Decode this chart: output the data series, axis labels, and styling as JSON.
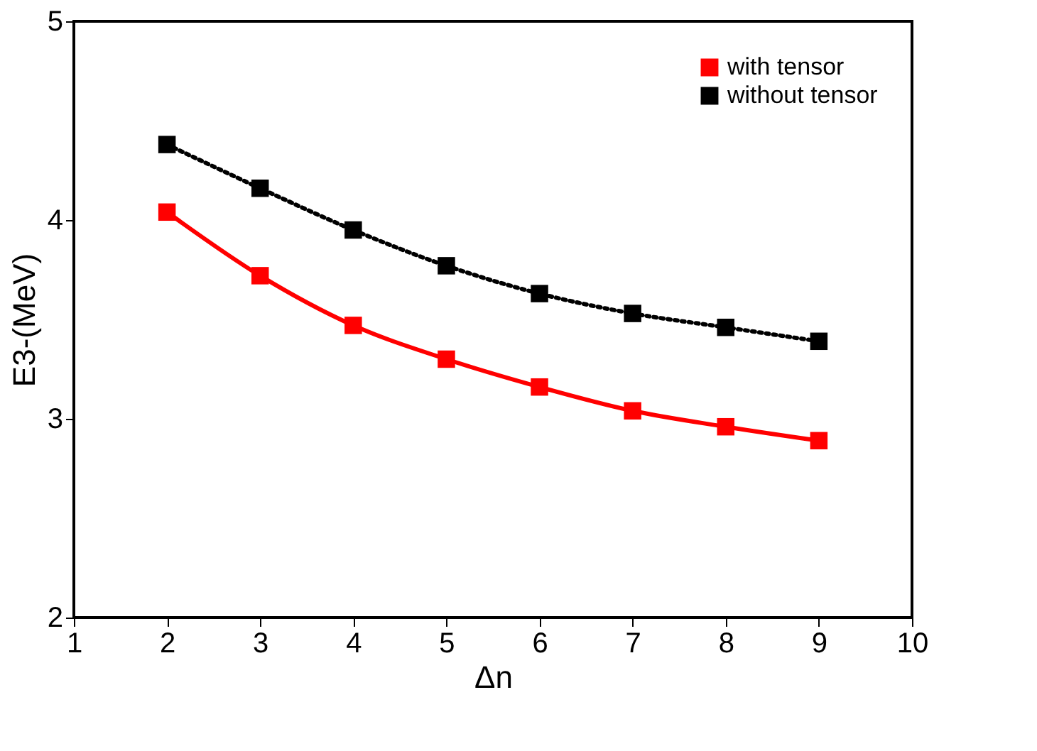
{
  "chart_data": {
    "type": "line",
    "xlabel": "Δn",
    "ylabel": "E3-(MeV)",
    "x": [
      2,
      3,
      4,
      5,
      6,
      7,
      8,
      9
    ],
    "series": [
      {
        "name": "with tensor",
        "color": "#ff0000",
        "line_style": "solid",
        "values": [
          4.04,
          3.72,
          3.47,
          3.3,
          3.16,
          3.04,
          2.96,
          2.89
        ]
      },
      {
        "name": "without tensor",
        "color": "#000000",
        "line_style": "dotted",
        "values": [
          4.38,
          4.16,
          3.95,
          3.77,
          3.63,
          3.53,
          3.46,
          3.39
        ]
      }
    ],
    "xlim": [
      1,
      10
    ],
    "xticks": [
      1,
      2,
      3,
      4,
      5,
      6,
      7,
      8,
      9,
      10
    ],
    "ylim": [
      2,
      5
    ],
    "yticks": [
      2,
      3,
      4,
      5
    ],
    "grid": false,
    "legend": "top right",
    "marker": "square"
  }
}
